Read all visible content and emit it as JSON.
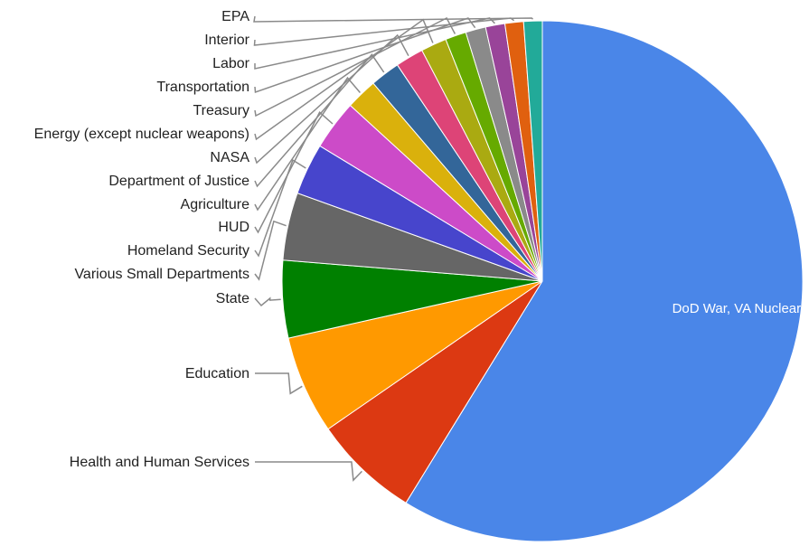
{
  "chart_data": {
    "type": "pie",
    "title": "",
    "start_angle_deg": 0,
    "direction": "clockwise",
    "legend": "none",
    "slices": [
      {
        "label": "DoD  War, VA  Nuclear Weapons",
        "value": 58.75,
        "color": "#4a86e8",
        "label_inside": true
      },
      {
        "label": "Health and Human Services",
        "value": 6.6,
        "color": "#dc3912"
      },
      {
        "label": "Education",
        "value": 6.1,
        "color": "#ff9900"
      },
      {
        "label": "State",
        "value": 4.8,
        "color": "#008000"
      },
      {
        "label": "Various Small Departments",
        "value": 4.2,
        "color": "#666666"
      },
      {
        "label": "Homeland Security",
        "value": 3.2,
        "color": "#4745cc"
      },
      {
        "label": "HUD",
        "value": 3.1,
        "color": "#cc4bc8"
      },
      {
        "label": "Agriculture",
        "value": 1.95,
        "color": "#dab10c"
      },
      {
        "label": "Department of Justice",
        "value": 1.85,
        "color": "#336699"
      },
      {
        "label": "NASA",
        "value": 1.75,
        "color": "#dd4477"
      },
      {
        "label": "Energy (except nuclear weapons)",
        "value": 1.6,
        "color": "#aaaa11"
      },
      {
        "label": "Treasury",
        "value": 1.3,
        "color": "#66aa00"
      },
      {
        "label": "Transportation",
        "value": 1.25,
        "color": "#8a8a8a"
      },
      {
        "label": "Labor",
        "value": 1.2,
        "color": "#994499"
      },
      {
        "label": "Interior",
        "value": 1.15,
        "color": "#e0600f"
      },
      {
        "label": "EPA",
        "value": 1.15,
        "color": "#22aa99"
      }
    ]
  }
}
